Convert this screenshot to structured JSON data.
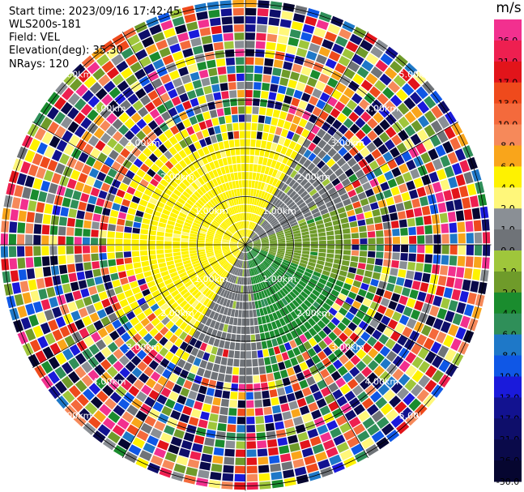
{
  "header": {
    "start_time": "Start time: 2023/09/16 17:42:45",
    "site": "WLS200s-181",
    "field": "Field: VEL",
    "elevation": "Elevation(deg): 35.30",
    "nrays": "NRays: 120"
  },
  "colorbar": {
    "unit": "m/s",
    "bands": [
      {
        "label": "26.0",
        "color": "#f2308f"
      },
      {
        "label": "21.0",
        "color": "#ee1f50"
      },
      {
        "label": "17.0",
        "color": "#e2141a"
      },
      {
        "label": "13.0",
        "color": "#ef4a1c"
      },
      {
        "label": "10.0",
        "color": "#f46a3c"
      },
      {
        "label": "8.0",
        "color": "#f6895a"
      },
      {
        "label": "6.0",
        "color": "#f9a51b"
      },
      {
        "label": "4.0",
        "color": "#fef200"
      },
      {
        "label": "2.0",
        "color": "#fff77a"
      },
      {
        "label": "1.0",
        "color": "#8a8f95"
      },
      {
        "label": "0.0",
        "color": "#6f7378"
      },
      {
        "label": "-1.0",
        "color": "#9fc63b"
      },
      {
        "label": "-2.0",
        "color": "#6f9b2a"
      },
      {
        "label": "-4.0",
        "color": "#1a8c2e"
      },
      {
        "label": "-6.0",
        "color": "#2f8f59"
      },
      {
        "label": "-8.0",
        "color": "#1e78c8"
      },
      {
        "label": "-10.0",
        "color": "#0f57e6"
      },
      {
        "label": "-13.0",
        "color": "#1a1adb"
      },
      {
        "label": "-17.0",
        "color": "#121290"
      },
      {
        "label": "-21.0",
        "color": "#0e0e6a"
      },
      {
        "label": "-26.0",
        "color": "#0a0a4a"
      },
      {
        "label": "-30.0",
        "color": "#060630"
      }
    ]
  },
  "chart_data": {
    "type": "heatmap",
    "projection": "polar-ppi",
    "range_rings_km": [
      "1.00km",
      "2.00km",
      "3.00km",
      "4.00km",
      "5.00km"
    ],
    "ring_values_km": [
      1,
      2,
      3,
      4,
      5
    ],
    "max_range_km": 5.1,
    "n_rays": 120,
    "rays_visible": 120,
    "velocity_unit": "m/s",
    "vmin": -30,
    "vmax": 30,
    "near_field_pattern": [
      {
        "azimuth_deg_from": 280,
        "azimuth_deg_to": 30,
        "velocity": 4.0
      },
      {
        "azimuth_deg_from": 30,
        "azimuth_deg_to": 70,
        "velocity": 0.0
      },
      {
        "azimuth_deg_from": 70,
        "azimuth_deg_to": 110,
        "velocity": -2.0
      },
      {
        "azimuth_deg_from": 110,
        "azimuth_deg_to": 170,
        "velocity": -4.0
      },
      {
        "azimuth_deg_from": 170,
        "azimuth_deg_to": 210,
        "velocity": 0.0
      },
      {
        "azimuth_deg_from": 210,
        "azimuth_deg_to": 280,
        "velocity": 4.0
      }
    ],
    "clean_range_km": 2.2,
    "far_field": "noisy mixed velocities beyond ~3 km"
  }
}
